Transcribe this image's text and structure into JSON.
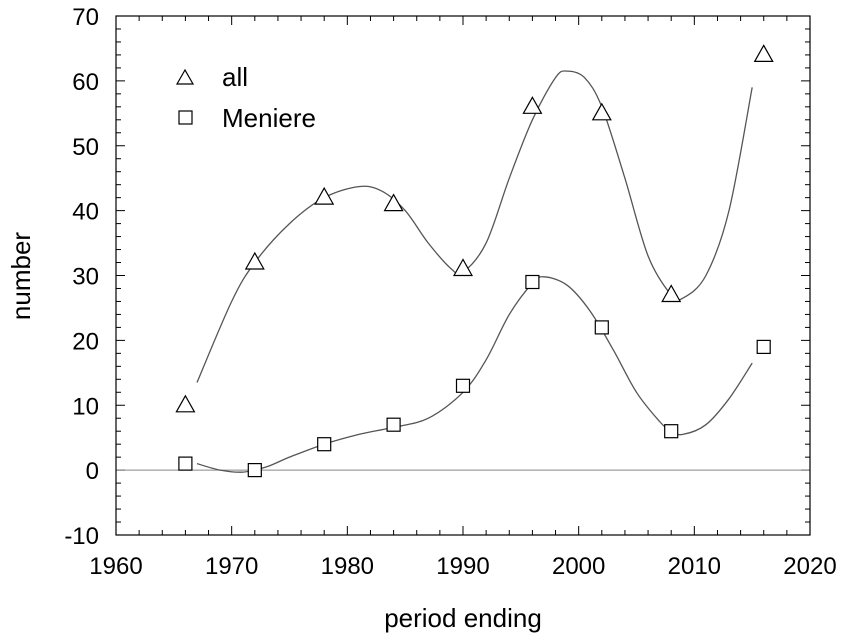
{
  "chart_data": {
    "type": "scatter",
    "xlabel": "period ending",
    "ylabel": "number",
    "xlim": [
      1960,
      2020
    ],
    "ylim": [
      -10,
      70
    ],
    "x_ticks": [
      1960,
      1970,
      1980,
      1990,
      2000,
      2010,
      2020
    ],
    "y_ticks": [
      -10,
      0,
      10,
      20,
      30,
      40,
      50,
      60,
      70
    ],
    "reference_line_y": 0,
    "grid": false,
    "legend_position": "top-left",
    "series": [
      {
        "name": "all",
        "marker": "triangle",
        "points": [
          {
            "x": 1966,
            "y": 10
          },
          {
            "x": 1972,
            "y": 32
          },
          {
            "x": 1978,
            "y": 42
          },
          {
            "x": 1984,
            "y": 41
          },
          {
            "x": 1990,
            "y": 31
          },
          {
            "x": 1996,
            "y": 56
          },
          {
            "x": 2002,
            "y": 55
          },
          {
            "x": 2008,
            "y": 27
          },
          {
            "x": 2016,
            "y": 64
          }
        ],
        "fit_curve": [
          [
            1967,
            13.5
          ],
          [
            1970,
            26
          ],
          [
            1972,
            32
          ],
          [
            1975,
            38
          ],
          [
            1978,
            42
          ],
          [
            1981,
            43.7
          ],
          [
            1983,
            43
          ],
          [
            1985,
            40
          ],
          [
            1987,
            35
          ],
          [
            1989,
            31
          ],
          [
            1990,
            30.5
          ],
          [
            1992,
            35
          ],
          [
            1994,
            45
          ],
          [
            1996,
            54
          ],
          [
            1998,
            60.5
          ],
          [
            1999,
            61.5
          ],
          [
            2000.5,
            60.5
          ],
          [
            2002,
            56
          ],
          [
            2004,
            45
          ],
          [
            2006,
            33
          ],
          [
            2008,
            27
          ],
          [
            2009,
            26.5
          ],
          [
            2011,
            30
          ],
          [
            2013,
            40
          ],
          [
            2015,
            59
          ]
        ]
      },
      {
        "name": "Meniere",
        "marker": "square",
        "points": [
          {
            "x": 1966,
            "y": 1
          },
          {
            "x": 1972,
            "y": 0
          },
          {
            "x": 1978,
            "y": 4
          },
          {
            "x": 1984,
            "y": 7
          },
          {
            "x": 1990,
            "y": 13
          },
          {
            "x": 1996,
            "y": 29
          },
          {
            "x": 2002,
            "y": 22
          },
          {
            "x": 2008,
            "y": 6
          },
          {
            "x": 2016,
            "y": 19
          }
        ],
        "fit_curve": [
          [
            1967,
            1
          ],
          [
            1969,
            0
          ],
          [
            1971,
            -0.3
          ],
          [
            1973,
            0.5
          ],
          [
            1975,
            2
          ],
          [
            1978,
            4
          ],
          [
            1981,
            5.5
          ],
          [
            1984,
            6.6
          ],
          [
            1987,
            8
          ],
          [
            1990,
            12
          ],
          [
            1992,
            17
          ],
          [
            1994,
            24
          ],
          [
            1996,
            28.8
          ],
          [
            1997,
            29.8
          ],
          [
            1999,
            28.5
          ],
          [
            2001,
            24.5
          ],
          [
            2003,
            18.5
          ],
          [
            2005,
            12
          ],
          [
            2007,
            7.5
          ],
          [
            2008,
            6
          ],
          [
            2009,
            5.5
          ],
          [
            2011,
            7
          ],
          [
            2013,
            11
          ],
          [
            2015,
            16.5
          ]
        ]
      }
    ]
  }
}
